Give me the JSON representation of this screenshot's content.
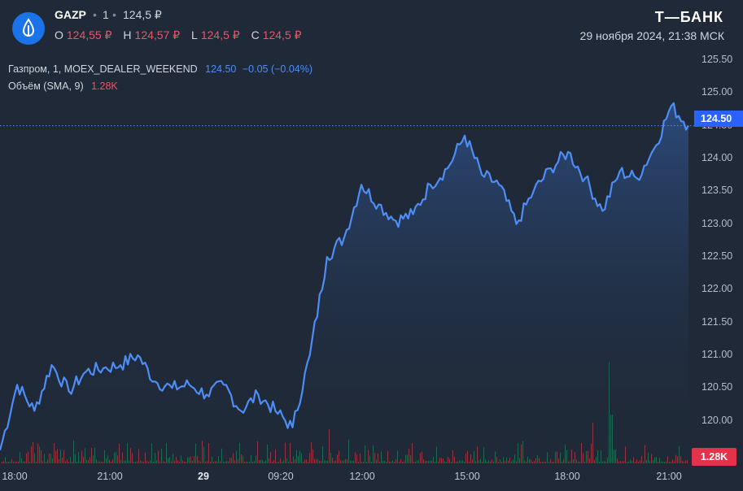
{
  "header": {
    "ticker": "GAZP",
    "separator": "•",
    "interval": "1",
    "last_price": "124,5 ₽",
    "ohlc": {
      "o_label": "O",
      "o_value": "124,55 ₽",
      "h_label": "H",
      "h_value": "124,57 ₽",
      "l_label": "L",
      "l_value": "124,5 ₽",
      "c_label": "C",
      "c_value": "124,5 ₽"
    },
    "brand": "Т—БАНК",
    "datetime": "29 ноября 2024, 21:38 МСК"
  },
  "legend": {
    "series_name": "Газпром, 1, MOEX_DEALER_WEEKEND",
    "series_value": "124.50",
    "series_change": "−0.05 (−0.04%)",
    "volume_name": "Объём (SMA, 9)",
    "volume_value": "1.28K"
  },
  "badges": {
    "price": "124.50",
    "volume": "1.28K"
  },
  "colors": {
    "background": "#1f2937",
    "line": "#4d8df5",
    "area_top": "#2e4f86",
    "price_badge": "#2962ff",
    "volume_badge": "#e2334a",
    "volume_up": "#1f7a5a",
    "volume_down": "#b03a48",
    "text": "#d1d4dc",
    "negative": "#ef5366"
  },
  "chart_data": {
    "type": "area",
    "title": "",
    "series": [
      {
        "name": "Газпром, 1, MOEX_DEALER_WEEKEND",
        "x": [
          "18:00",
          "18:30",
          "19:00",
          "19:30",
          "20:00",
          "20:30",
          "21:00",
          "21:30",
          "22:00",
          "22:30",
          "23:00",
          "23:30",
          "29 00:00",
          "29 09:00",
          "09:20",
          "09:40",
          "10:00",
          "10:30",
          "11:00",
          "11:30",
          "12:00",
          "12:30",
          "13:00",
          "13:30",
          "14:00",
          "14:30",
          "15:00",
          "15:30",
          "16:00",
          "16:30",
          "17:00",
          "17:30",
          "18:00",
          "18:30",
          "19:00",
          "19:30",
          "20:00",
          "20:30",
          "21:00",
          "21:30",
          "21:38"
        ],
        "values": [
          119.55,
          120.55,
          120.15,
          120.85,
          120.45,
          120.75,
          120.8,
          120.85,
          121.0,
          120.6,
          120.5,
          120.55,
          120.4,
          120.55,
          120.15,
          120.4,
          120.15,
          119.9,
          121.0,
          122.5,
          122.8,
          123.6,
          123.3,
          123.05,
          123.15,
          123.6,
          123.85,
          124.35,
          123.75,
          123.6,
          123.0,
          123.5,
          123.85,
          124.1,
          123.7,
          123.2,
          123.8,
          123.7,
          124.15,
          124.8,
          124.5
        ]
      }
    ],
    "volume": {
      "name": "Объём (SMA, 9)",
      "last": "1.28K"
    },
    "xticks": [
      "18:00",
      "21:00",
      "29",
      "09:20",
      "12:00",
      "15:00",
      "18:00",
      "21:00"
    ],
    "yticks": [
      "119.50",
      "120.00",
      "120.50",
      "121.00",
      "121.50",
      "122.00",
      "122.50",
      "123.00",
      "123.50",
      "124.00",
      "124.50",
      "125.00",
      "125.50"
    ],
    "ylim": [
      119.4,
      125.55
    ],
    "last_value": 124.5,
    "grid": false,
    "legend": "top-left"
  }
}
